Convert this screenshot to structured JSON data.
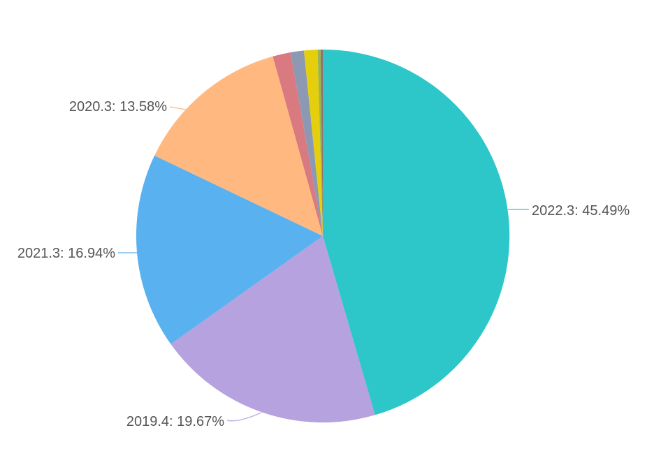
{
  "page": {
    "background": "#ffffff"
  },
  "chart_data": {
    "type": "pie",
    "title": "",
    "direction": "clockwise",
    "start_angle_deg": 0,
    "legend_position": "none",
    "grid": false,
    "label_color": "#555555",
    "slices": [
      {
        "name": "2022.3",
        "value": 45.49,
        "color": "#2ec7c9",
        "labeled": true,
        "label_text": "2022.3: 45.49%"
      },
      {
        "name": "2019.4",
        "value": 19.67,
        "color": "#b6a2de",
        "labeled": true,
        "label_text": "2019.4: 19.67%"
      },
      {
        "name": "2021.3",
        "value": 16.94,
        "color": "#5ab1ef",
        "labeled": true,
        "label_text": "2021.3: 16.94%"
      },
      {
        "name": "2020.3",
        "value": 13.58,
        "color": "#ffb980",
        "labeled": true,
        "label_text": "2020.3: 13.58%"
      },
      {
        "name": "",
        "value": 1.55,
        "color": "#d87a80",
        "labeled": false
      },
      {
        "name": "",
        "value": 1.16,
        "color": "#8d98b3",
        "labeled": false
      },
      {
        "name": "",
        "value": 1.16,
        "color": "#e5cf0d",
        "labeled": false
      },
      {
        "name": "",
        "value": 0.26,
        "color": "#97b552",
        "labeled": false
      },
      {
        "name": "",
        "value": 0.19,
        "color": "#95706d",
        "labeled": false
      }
    ]
  }
}
